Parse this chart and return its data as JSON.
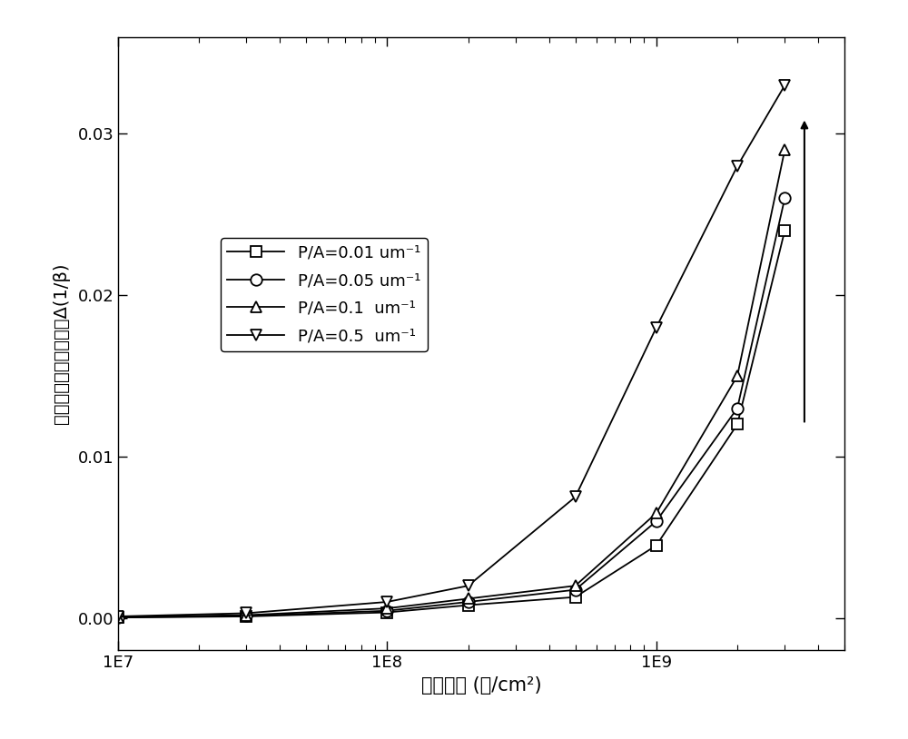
{
  "series": [
    {
      "label": "P/A=0.01 um⁻¹",
      "marker": "s",
      "color": "#000000",
      "x": [
        10000000.0,
        30000000.0,
        100000000.0,
        200000000.0,
        500000000.0,
        1000000000.0,
        2000000000.0,
        3000000000.0
      ],
      "y": [
        3e-05,
        0.0001,
        0.00035,
        0.0008,
        0.0013,
        0.0045,
        0.012,
        0.024
      ]
    },
    {
      "label": "P/A=0.05 um⁻¹",
      "marker": "o",
      "color": "#000000",
      "x": [
        10000000.0,
        30000000.0,
        100000000.0,
        200000000.0,
        500000000.0,
        1000000000.0,
        2000000000.0,
        3000000000.0
      ],
      "y": [
        5e-05,
        0.00013,
        0.00045,
        0.001,
        0.00175,
        0.006,
        0.013,
        0.026
      ]
    },
    {
      "label": "P/A=0.1  um⁻¹",
      "marker": "^",
      "color": "#000000",
      "x": [
        10000000.0,
        30000000.0,
        100000000.0,
        200000000.0,
        500000000.0,
        1000000000.0,
        2000000000.0,
        3000000000.0
      ],
      "y": [
        7e-05,
        0.00018,
        0.0006,
        0.0012,
        0.002,
        0.0065,
        0.015,
        0.029
      ]
    },
    {
      "label": "P/A=0.5  um⁻¹",
      "marker": "v",
      "color": "#000000",
      "x": [
        10000000.0,
        30000000.0,
        100000000.0,
        200000000.0,
        500000000.0,
        1000000000.0,
        2000000000.0,
        3000000000.0
      ],
      "y": [
        0.0001,
        0.0003,
        0.001,
        0.002,
        0.0075,
        0.018,
        0.028,
        0.033
      ]
    }
  ],
  "xlabel": "辐射注量 (个/cm²)",
  "ylabel": "电流增益倒数变化量，Δ(1/β)",
  "xlim": [
    10000000.0,
    5000000000.0
  ],
  "ylim": [
    -0.002,
    0.036
  ],
  "yticks": [
    0.0,
    0.01,
    0.02,
    0.03
  ],
  "background_color": "#ffffff",
  "figsize": [
    10.0,
    8.14
  ],
  "dpi": 100
}
